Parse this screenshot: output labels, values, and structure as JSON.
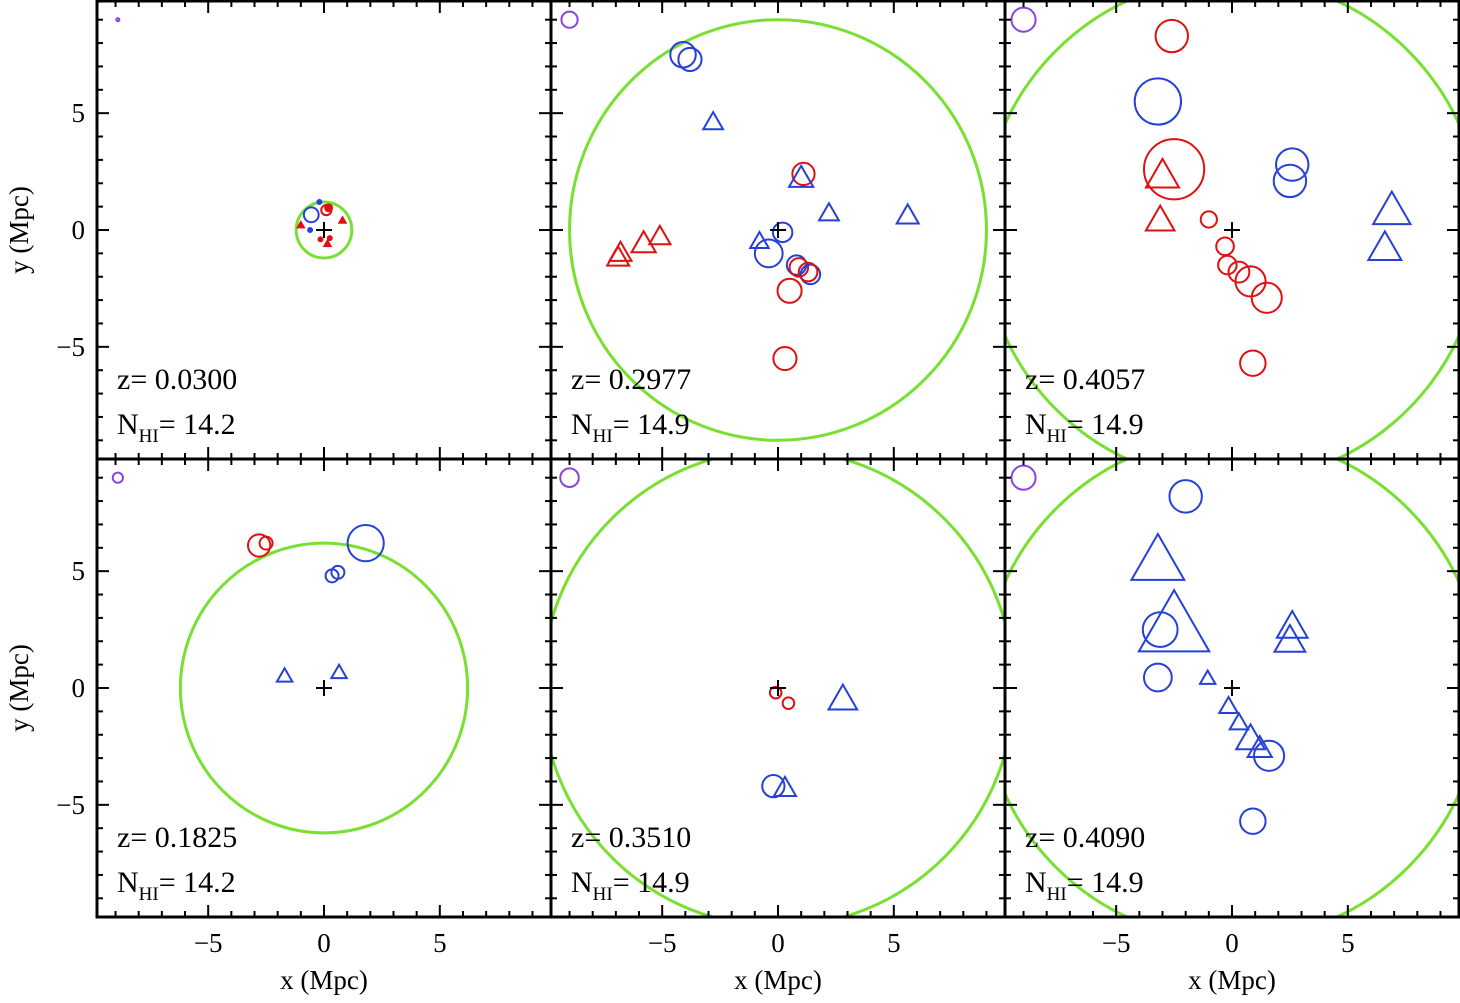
{
  "chart_data": {
    "type": "scatter",
    "layout": "2x3 shared-axis panels",
    "xlim": [
      -9.8,
      9.8
    ],
    "ylim": [
      -9.8,
      9.8
    ],
    "xticks": [
      -5,
      0,
      5
    ],
    "yticks": [
      -5,
      0,
      5
    ],
    "tick_labels": [
      "−5",
      "0",
      "5"
    ],
    "xlabel": "x (Mpc)",
    "ylabel": "y (Mpc)",
    "colors": {
      "red": "#e01010",
      "blue": "#2640d8",
      "green": "#78e030",
      "purple": "#8844dd",
      "black": "#000000"
    },
    "panels": [
      {
        "id": "p1",
        "row": 0,
        "col": 0,
        "z_text": "z= 0.0300",
        "n_label": "N",
        "n_sub": "HI",
        "n_value": "= 14.2",
        "green_circle": {
          "cx": 0,
          "cy": 0,
          "r": 1.2
        },
        "legend_circle": {
          "x": -8.9,
          "y": 9.0,
          "r": 0.05
        },
        "points": [
          {
            "shape": "circle",
            "color": "blue",
            "x": -0.55,
            "y": 0.65,
            "size": 0.32
          },
          {
            "shape": "circle",
            "color": "red",
            "x": 0.1,
            "y": 0.85,
            "size": 0.22
          },
          {
            "shape": "circle",
            "color": "red",
            "x": 0.2,
            "y": 0.95,
            "size": 0.15
          },
          {
            "shape": "circle",
            "color": "blue",
            "x": -0.2,
            "y": 1.2,
            "size": 0.07
          },
          {
            "shape": "circle",
            "color": "blue",
            "x": -0.6,
            "y": 0.0,
            "size": 0.06
          },
          {
            "shape": "circle",
            "color": "red",
            "x": -0.15,
            "y": -0.4,
            "size": 0.08
          },
          {
            "shape": "circle",
            "color": "red",
            "x": 0.25,
            "y": -0.35,
            "size": 0.06
          },
          {
            "shape": "triangle",
            "color": "red",
            "x": -1.0,
            "y": 0.2,
            "size": 0.14
          },
          {
            "shape": "triangle",
            "color": "red",
            "x": 0.8,
            "y": 0.4,
            "size": 0.14
          },
          {
            "shape": "triangle",
            "color": "red",
            "x": 0.15,
            "y": -0.6,
            "size": 0.14
          }
        ]
      },
      {
        "id": "p2",
        "row": 0,
        "col": 1,
        "z_text": "z= 0.2977",
        "n_label": "N",
        "n_sub": "HI",
        "n_value": "= 14.9",
        "green_circle": {
          "cx": 0,
          "cy": 0,
          "r": 9.0
        },
        "legend_circle": {
          "x": -9.0,
          "y": 9.0,
          "r": 0.35
        },
        "points": [
          {
            "shape": "circle",
            "color": "blue",
            "x": -4.1,
            "y": 7.5,
            "size": 0.55
          },
          {
            "shape": "circle",
            "color": "blue",
            "x": -3.8,
            "y": 7.3,
            "size": 0.5
          },
          {
            "shape": "triangle",
            "color": "blue",
            "x": -2.8,
            "y": 4.6,
            "size": 0.45
          },
          {
            "shape": "circle",
            "color": "red",
            "x": 1.1,
            "y": 2.4,
            "size": 0.48
          },
          {
            "shape": "triangle",
            "color": "blue",
            "x": 1.0,
            "y": 2.2,
            "size": 0.55
          },
          {
            "shape": "triangle",
            "color": "blue",
            "x": 2.2,
            "y": 0.7,
            "size": 0.45
          },
          {
            "shape": "triangle",
            "color": "blue",
            "x": 5.6,
            "y": 0.6,
            "size": 0.5
          },
          {
            "shape": "circle",
            "color": "blue",
            "x": 0.2,
            "y": -0.1,
            "size": 0.42
          },
          {
            "shape": "triangle",
            "color": "blue",
            "x": -0.8,
            "y": -0.5,
            "size": 0.42
          },
          {
            "shape": "circle",
            "color": "blue",
            "x": -0.4,
            "y": -1.0,
            "size": 0.6
          },
          {
            "shape": "triangle",
            "color": "red",
            "x": -5.1,
            "y": -0.3,
            "size": 0.48
          },
          {
            "shape": "triangle",
            "color": "red",
            "x": -5.8,
            "y": -0.6,
            "size": 0.55
          },
          {
            "shape": "triangle",
            "color": "red",
            "x": -6.8,
            "y": -1.0,
            "size": 0.5
          },
          {
            "shape": "triangle",
            "color": "red",
            "x": -6.9,
            "y": -1.2,
            "size": 0.5
          },
          {
            "shape": "circle",
            "color": "blue",
            "x": 0.8,
            "y": -1.5,
            "size": 0.42
          },
          {
            "shape": "circle",
            "color": "red",
            "x": 0.9,
            "y": -1.6,
            "size": 0.4
          },
          {
            "shape": "circle",
            "color": "blue",
            "x": 1.4,
            "y": -1.9,
            "size": 0.42
          },
          {
            "shape": "circle",
            "color": "red",
            "x": 1.3,
            "y": -1.8,
            "size": 0.4
          },
          {
            "shape": "circle",
            "color": "red",
            "x": 0.5,
            "y": -2.6,
            "size": 0.52
          },
          {
            "shape": "circle",
            "color": "red",
            "x": 0.3,
            "y": -5.5,
            "size": 0.5
          }
        ]
      },
      {
        "id": "p3",
        "row": 0,
        "col": 2,
        "z_text": "z= 0.4057",
        "n_label": "N",
        "n_sub": "HI",
        "n_value": "= 14.9",
        "green_circle": {
          "cx": 0,
          "cy": 0,
          "r": 10.8
        },
        "legend_circle": {
          "x": -9.0,
          "y": 9.0,
          "r": 0.52
        },
        "points": [
          {
            "shape": "circle",
            "color": "red",
            "x": -2.6,
            "y": 8.3,
            "size": 0.7
          },
          {
            "shape": "circle",
            "color": "blue",
            "x": -3.2,
            "y": 5.5,
            "size": 1.0
          },
          {
            "shape": "circle",
            "color": "red",
            "x": -2.5,
            "y": 2.6,
            "size": 1.3
          },
          {
            "shape": "triangle",
            "color": "red",
            "x": -3.0,
            "y": 2.3,
            "size": 0.75
          },
          {
            "shape": "triangle",
            "color": "red",
            "x": -3.1,
            "y": 0.4,
            "size": 0.65
          },
          {
            "shape": "circle",
            "color": "blue",
            "x": 2.6,
            "y": 2.8,
            "size": 0.7
          },
          {
            "shape": "circle",
            "color": "blue",
            "x": 2.5,
            "y": 2.1,
            "size": 0.7
          },
          {
            "shape": "triangle",
            "color": "blue",
            "x": 6.9,
            "y": 0.8,
            "size": 0.85
          },
          {
            "shape": "triangle",
            "color": "blue",
            "x": 6.6,
            "y": -0.8,
            "size": 0.75
          },
          {
            "shape": "circle",
            "color": "red",
            "x": -1.0,
            "y": 0.45,
            "size": 0.35
          },
          {
            "shape": "circle",
            "color": "red",
            "x": -0.3,
            "y": -0.7,
            "size": 0.38
          },
          {
            "shape": "circle",
            "color": "red",
            "x": -0.2,
            "y": -1.5,
            "size": 0.4
          },
          {
            "shape": "circle",
            "color": "red",
            "x": 0.3,
            "y": -1.8,
            "size": 0.45
          },
          {
            "shape": "circle",
            "color": "red",
            "x": 0.8,
            "y": -2.2,
            "size": 0.65
          },
          {
            "shape": "circle",
            "color": "red",
            "x": 1.5,
            "y": -2.9,
            "size": 0.65
          },
          {
            "shape": "circle",
            "color": "red",
            "x": 0.9,
            "y": -5.7,
            "size": 0.55
          }
        ]
      },
      {
        "id": "p4",
        "row": 1,
        "col": 0,
        "z_text": "z= 0.1825",
        "n_label": "N",
        "n_sub": "HI",
        "n_value": "= 14.2",
        "green_circle": {
          "cx": 0,
          "cy": 0,
          "r": 6.2
        },
        "legend_circle": {
          "x": -8.9,
          "y": 9.0,
          "r": 0.22
        },
        "points": [
          {
            "shape": "circle",
            "color": "red",
            "x": -2.8,
            "y": 6.1,
            "size": 0.48
          },
          {
            "shape": "circle",
            "color": "red",
            "x": -2.5,
            "y": 6.2,
            "size": 0.28
          },
          {
            "shape": "circle",
            "color": "blue",
            "x": 1.8,
            "y": 6.2,
            "size": 0.78
          },
          {
            "shape": "circle",
            "color": "blue",
            "x": 0.35,
            "y": 4.8,
            "size": 0.28
          },
          {
            "shape": "circle",
            "color": "blue",
            "x": 0.6,
            "y": 4.95,
            "size": 0.28
          },
          {
            "shape": "triangle",
            "color": "blue",
            "x": -1.7,
            "y": 0.5,
            "size": 0.35
          },
          {
            "shape": "triangle",
            "color": "blue",
            "x": 0.65,
            "y": 0.65,
            "size": 0.35
          }
        ]
      },
      {
        "id": "p5",
        "row": 1,
        "col": 1,
        "z_text": "z= 0.3510",
        "n_label": "N",
        "n_sub": "HI",
        "n_value": "= 14.9",
        "green_circle": {
          "cx": 0,
          "cy": 0,
          "r": 10.2
        },
        "legend_circle": {
          "x": -9.0,
          "y": 9.0,
          "r": 0.4
        },
        "points": [
          {
            "shape": "circle",
            "color": "red",
            "x": -0.1,
            "y": -0.2,
            "size": 0.25
          },
          {
            "shape": "circle",
            "color": "red",
            "x": 0.45,
            "y": -0.65,
            "size": 0.25
          },
          {
            "shape": "triangle",
            "color": "blue",
            "x": 2.8,
            "y": -0.5,
            "size": 0.65
          },
          {
            "shape": "circle",
            "color": "blue",
            "x": -0.2,
            "y": -4.2,
            "size": 0.48
          },
          {
            "shape": "triangle",
            "color": "blue",
            "x": 0.3,
            "y": -4.3,
            "size": 0.5
          }
        ]
      },
      {
        "id": "p6",
        "row": 1,
        "col": 2,
        "z_text": "z= 0.4090",
        "n_label": "N",
        "n_sub": "HI",
        "n_value": "= 14.9",
        "green_circle": {
          "cx": 0,
          "cy": 0,
          "r": 10.8
        },
        "legend_circle": {
          "x": -9.0,
          "y": 9.0,
          "r": 0.52
        },
        "points": [
          {
            "shape": "circle",
            "color": "blue",
            "x": -2.0,
            "y": 8.2,
            "size": 0.7
          },
          {
            "shape": "triangle",
            "color": "blue",
            "x": -3.2,
            "y": 5.4,
            "size": 1.2
          },
          {
            "shape": "triangle",
            "color": "blue",
            "x": -2.5,
            "y": 2.6,
            "size": 1.6
          },
          {
            "shape": "circle",
            "color": "blue",
            "x": -3.1,
            "y": 2.5,
            "size": 0.75
          },
          {
            "shape": "triangle",
            "color": "blue",
            "x": 2.6,
            "y": 2.6,
            "size": 0.7
          },
          {
            "shape": "triangle",
            "color": "blue",
            "x": 2.5,
            "y": 2.0,
            "size": 0.7
          },
          {
            "shape": "circle",
            "color": "blue",
            "x": -3.2,
            "y": 0.45,
            "size": 0.6
          },
          {
            "shape": "triangle",
            "color": "blue",
            "x": -1.05,
            "y": 0.4,
            "size": 0.35
          },
          {
            "shape": "triangle",
            "color": "blue",
            "x": -0.15,
            "y": -0.8,
            "size": 0.42
          },
          {
            "shape": "triangle",
            "color": "blue",
            "x": 0.3,
            "y": -1.5,
            "size": 0.42
          },
          {
            "shape": "triangle",
            "color": "blue",
            "x": 0.8,
            "y": -2.2,
            "size": 0.65
          },
          {
            "shape": "triangle",
            "color": "blue",
            "x": 1.2,
            "y": -2.6,
            "size": 0.55
          },
          {
            "shape": "circle",
            "color": "blue",
            "x": 1.6,
            "y": -2.9,
            "size": 0.65
          },
          {
            "shape": "circle",
            "color": "blue",
            "x": 0.9,
            "y": -5.7,
            "size": 0.55
          }
        ]
      }
    ]
  }
}
